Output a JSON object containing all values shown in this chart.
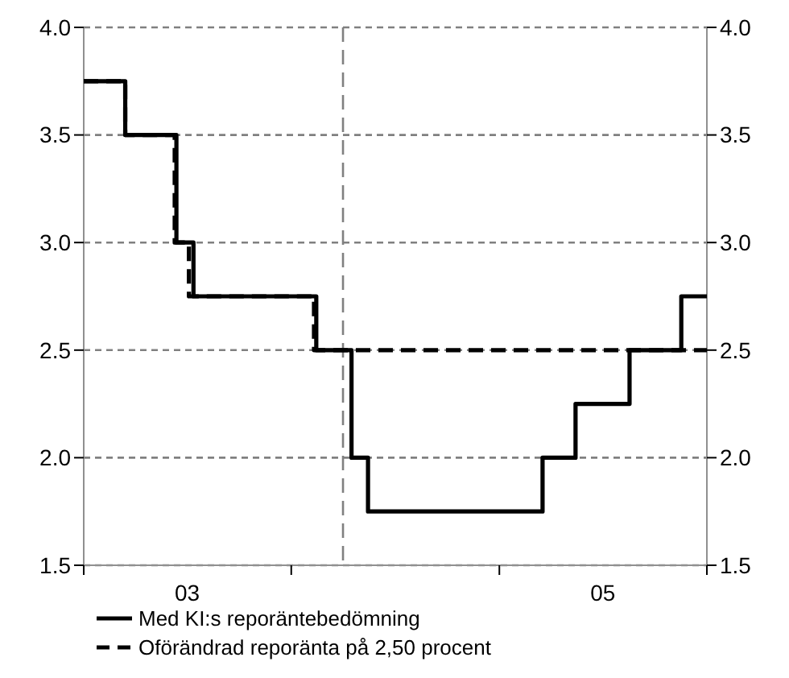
{
  "chart_data": {
    "type": "step",
    "xlim": [
      "2003-01-01",
      "2006-01-01"
    ],
    "xticks": [
      {
        "value": "2003-01-01",
        "label": null
      },
      {
        "value": "2003-07-02",
        "label": "03"
      },
      {
        "value": "2004-01-01",
        "label": null
      },
      {
        "value": "2005-01-01",
        "label": null
      },
      {
        "value": "2005-07-02",
        "label": "05"
      },
      {
        "value": "2006-01-01",
        "label": null
      }
    ],
    "ylim": [
      1.5,
      4.0
    ],
    "yticks": [
      {
        "value": 1.5,
        "label": "1.5"
      },
      {
        "value": 2.0,
        "label": "2.0"
      },
      {
        "value": 2.5,
        "label": "2.5"
      },
      {
        "value": 3.0,
        "label": "3.0"
      },
      {
        "value": 3.5,
        "label": "3.5"
      },
      {
        "value": 4.0,
        "label": "4.0"
      }
    ],
    "y2lim": [
      1.5,
      4.0
    ],
    "y2ticks": [
      {
        "value": 1.5,
        "label": "1.5"
      },
      {
        "value": 2.0,
        "label": "2.0"
      },
      {
        "value": 2.5,
        "label": "2.5"
      },
      {
        "value": 3.0,
        "label": "3.0"
      },
      {
        "value": 3.5,
        "label": "3.5"
      },
      {
        "value": 4.0,
        "label": "4.0"
      }
    ],
    "grid": "y",
    "legend": "bottom",
    "ref_lines": [
      {
        "axis": "x",
        "value": "2004-04-01",
        "color": "#808080",
        "line_style": "dashed"
      }
    ],
    "series": [
      {
        "name": "Med KI:s reporäntebedömning",
        "color": "#000000",
        "line_style": "solid",
        "x": [
          "2003-01-01",
          "2003-03-15",
          "2003-06-13",
          "2003-07-13",
          "2004-02-14",
          "2004-04-16",
          "2004-05-15",
          "2005-03-18",
          "2005-05-15",
          "2005-08-18",
          "2005-11-17",
          "2006-01-01"
        ],
        "values": [
          3.75,
          3.5,
          3.0,
          2.75,
          2.5,
          2.0,
          1.75,
          2.0,
          2.25,
          2.5,
          2.75,
          2.75
        ]
      },
      {
        "name": "Oförändrad reporänta på 2,50 procent",
        "color": "#000000",
        "line_style": "dashed",
        "x": [
          "2003-01-01",
          "2003-03-15",
          "2003-06-10",
          "2003-07-05",
          "2004-02-10",
          "2006-01-01"
        ],
        "values": [
          3.75,
          3.5,
          3.0,
          2.75,
          2.5,
          2.5
        ]
      }
    ]
  }
}
